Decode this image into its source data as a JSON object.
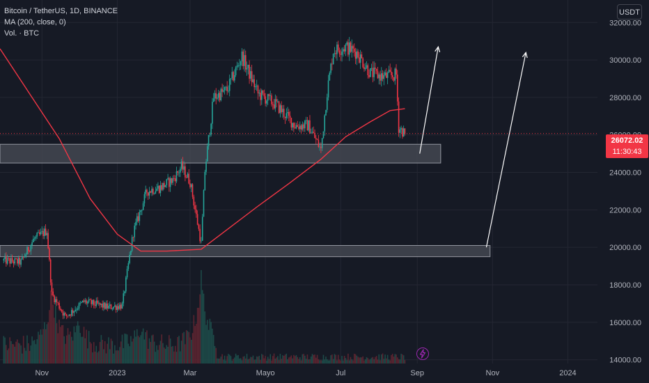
{
  "legend": {
    "symbol": "Bitcoin / TetherUS, 1D, BINANCE",
    "indicator_ma": "MA (200, close, 0)",
    "indicator_vol": "Vol. · BTC"
  },
  "currency_button": "USDT",
  "last_price": {
    "value": "26072.02",
    "countdown": "11:30:43"
  },
  "colors": {
    "background": "#161a25",
    "up": "#26a69a",
    "down": "#f23645",
    "ma_line": "#f23645",
    "zone_fill": "#4a4d57",
    "arrow": "#ffffff",
    "axis_text": "#b2b5be"
  },
  "chart_data": {
    "type": "candlestick",
    "yaxis": {
      "ticks": [
        "32000.00",
        "30000.00",
        "28000.00",
        "26000.00",
        "24000.00",
        "22000.00",
        "20000.00",
        "18000.00",
        "16000.00",
        "14000.00"
      ],
      "range": [
        13800,
        33200
      ]
    },
    "xaxis": {
      "ticks": [
        "Nov",
        "2023",
        "Mar",
        "Mayo",
        "Jul",
        "Sep",
        "Nov",
        "2024"
      ]
    },
    "price_path": [
      [
        "2022-10-01",
        19300
      ],
      [
        "2022-10-15",
        19200
      ],
      [
        "2022-10-25",
        20400
      ],
      [
        "2022-11-05",
        20900
      ],
      [
        "2022-11-09",
        17500
      ],
      [
        "2022-11-20",
        16300
      ],
      [
        "2022-12-05",
        17100
      ],
      [
        "2022-12-25",
        16800
      ],
      [
        "2023-01-05",
        16900
      ],
      [
        "2023-01-14",
        20800
      ],
      [
        "2023-01-25",
        23000
      ],
      [
        "2023-02-05",
        23200
      ],
      [
        "2023-02-15",
        23600
      ],
      [
        "2023-02-22",
        24300
      ],
      [
        "2023-03-01",
        23500
      ],
      [
        "2023-03-10",
        20200
      ],
      [
        "2023-03-13",
        24100
      ],
      [
        "2023-03-20",
        28000
      ],
      [
        "2023-03-31",
        28400
      ],
      [
        "2023-04-12",
        30200
      ],
      [
        "2023-04-25",
        28200
      ],
      [
        "2023-05-10",
        27600
      ],
      [
        "2023-05-25",
        26500
      ],
      [
        "2023-06-05",
        26500
      ],
      [
        "2023-06-15",
        25200
      ],
      [
        "2023-06-20",
        28300
      ],
      [
        "2023-06-25",
        30500
      ],
      [
        "2023-07-05",
        30700
      ],
      [
        "2023-07-14",
        30400
      ],
      [
        "2023-07-25",
        29300
      ],
      [
        "2023-08-05",
        29100
      ],
      [
        "2023-08-15",
        29200
      ],
      [
        "2023-08-17",
        26400
      ],
      [
        "2023-08-22",
        26072
      ]
    ],
    "ma200": [
      [
        "2022-09-28",
        30600
      ],
      [
        "2022-10-20",
        28400
      ],
      [
        "2022-11-15",
        25800
      ],
      [
        "2022-12-10",
        22600
      ],
      [
        "2023-01-01",
        20700
      ],
      [
        "2023-01-20",
        19800
      ],
      [
        "2023-02-10",
        19800
      ],
      [
        "2023-03-10",
        19900
      ],
      [
        "2023-04-01",
        21000
      ],
      [
        "2023-04-25",
        22200
      ],
      [
        "2023-05-20",
        23400
      ],
      [
        "2023-06-15",
        24700
      ],
      [
        "2023-07-05",
        25900
      ],
      [
        "2023-07-25",
        26700
      ],
      [
        "2023-08-10",
        27300
      ],
      [
        "2023-08-22",
        27400
      ]
    ],
    "zones": [
      {
        "from": "2022-09-28",
        "to": "2023-09-20",
        "low": 24500,
        "high": 25500
      },
      {
        "from": "2022-09-28",
        "to": "2023-10-30",
        "low": 19500,
        "high": 20100
      }
    ],
    "arrows": [
      {
        "from": [
          "2023-09-03",
          25000
        ],
        "to": [
          "2023-09-18",
          30700
        ]
      },
      {
        "from": [
          "2023-10-27",
          20000
        ],
        "to": [
          "2023-11-28",
          30400
        ]
      }
    ],
    "last_price_line": 26072.02
  }
}
